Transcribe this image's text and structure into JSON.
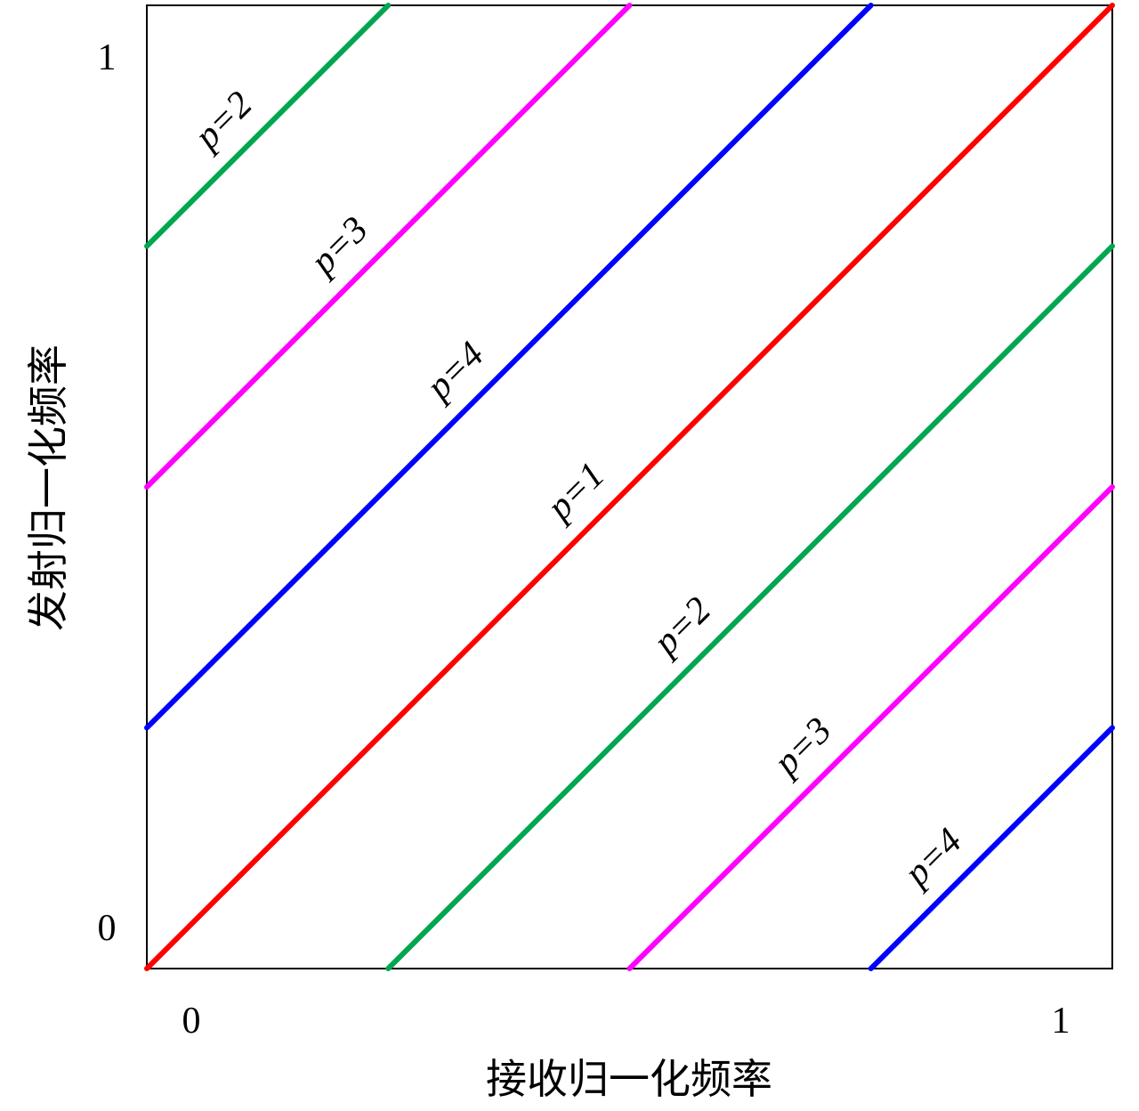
{
  "chart_data": {
    "type": "line",
    "xlabel": "接收归一化频率",
    "ylabel": "发射归一化频率",
    "xlim": [
      0,
      1
    ],
    "ylim": [
      0,
      1
    ],
    "xticks": [
      0,
      1
    ],
    "yticks": [
      0,
      1
    ],
    "grid": false,
    "series": [
      {
        "name": "p=2",
        "color": "#00a650",
        "x": [
          0,
          0.25
        ],
        "values": [
          0.75,
          1
        ]
      },
      {
        "name": "p=3",
        "color": "#ff00ff",
        "x": [
          0,
          0.5
        ],
        "values": [
          0.5,
          1
        ]
      },
      {
        "name": "p=4",
        "color": "#0000ff",
        "x": [
          0,
          0.75
        ],
        "values": [
          0.25,
          1
        ]
      },
      {
        "name": "p=1",
        "color": "#ff0000",
        "x": [
          0,
          1
        ],
        "values": [
          0,
          1
        ]
      },
      {
        "name": "p=2",
        "color": "#00a650",
        "x": [
          0.25,
          1
        ],
        "values": [
          0,
          0.75
        ]
      },
      {
        "name": "p=3",
        "color": "#ff00ff",
        "x": [
          0.5,
          1
        ],
        "values": [
          0,
          0.5
        ]
      },
      {
        "name": "p=4",
        "color": "#0000ff",
        "x": [
          0.75,
          1
        ],
        "values": [
          0,
          0.25
        ]
      }
    ]
  }
}
